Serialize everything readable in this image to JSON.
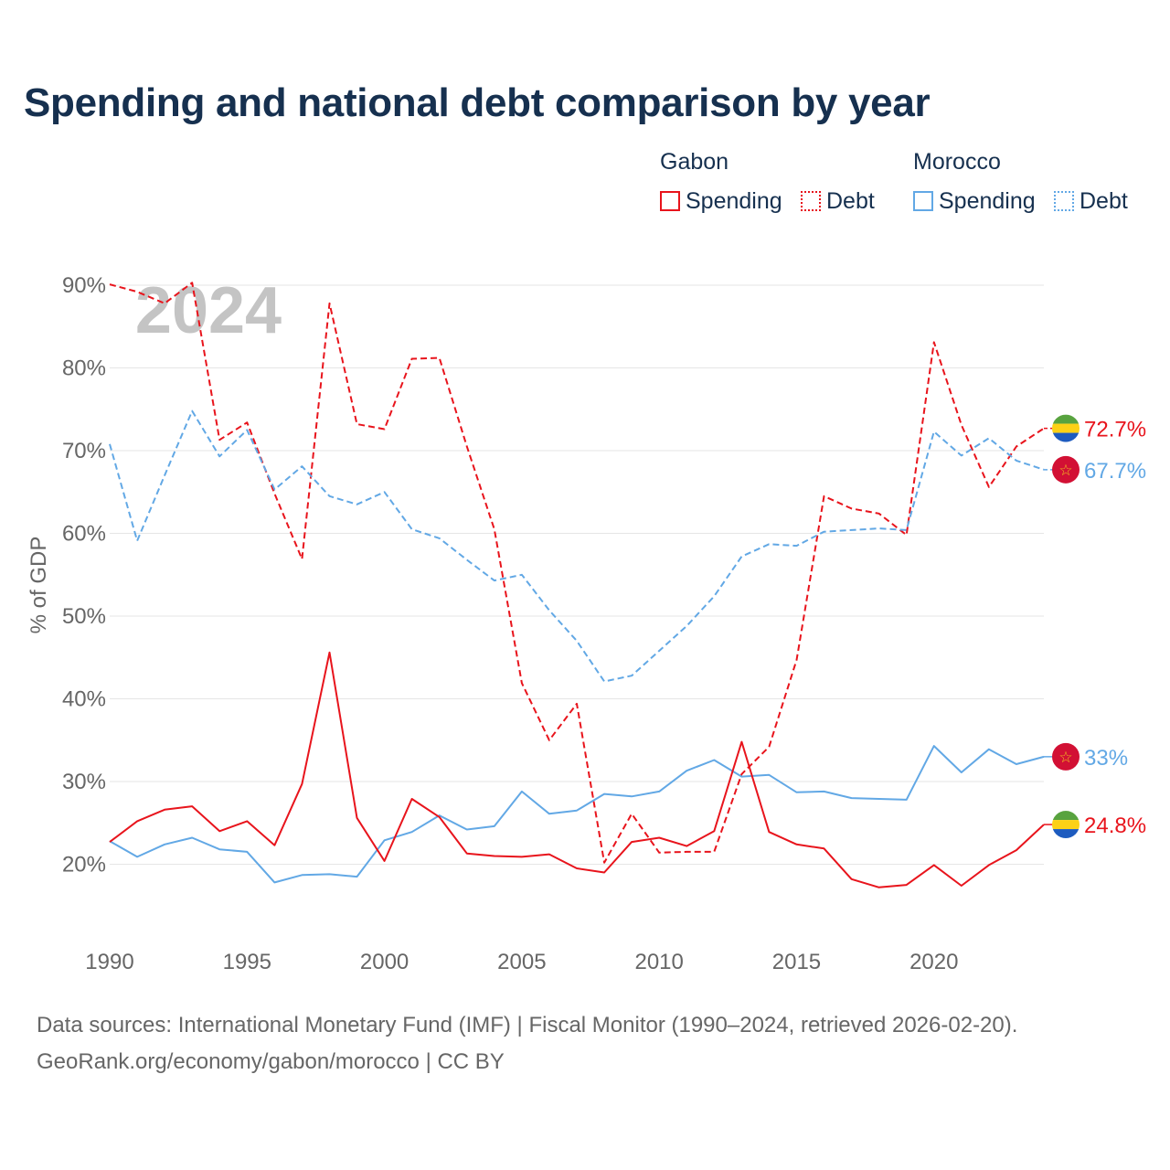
{
  "title": "Spending and national debt comparison by year",
  "legend": {
    "groups": [
      {
        "country": "Gabon",
        "spending_label": "Spending",
        "debt_label": "Debt",
        "color": "#e8141c"
      },
      {
        "country": "Morocco",
        "spending_label": "Spending",
        "debt_label": "Debt",
        "color": "#62a8e5"
      }
    ]
  },
  "footer": {
    "sources": "Data sources: International Monetary Fund (IMF) | Fiscal Monitor (1990–2024, retrieved 2026-02-20).",
    "credit": "GeoRank.org/economy/gabon/morocco | CC BY"
  },
  "chart_data": {
    "type": "line",
    "title": "Spending and national debt comparison by year",
    "ylabel": "% of GDP",
    "xlabel": "",
    "year_watermark": "2024",
    "xlim": [
      1990,
      2024
    ],
    "ylim": [
      10,
      90
    ],
    "y_ticks": [
      20,
      30,
      40,
      50,
      60,
      70,
      80,
      90
    ],
    "y_tick_labels": [
      "20%",
      "30%",
      "40%",
      "50%",
      "60%",
      "70%",
      "80%",
      "90%"
    ],
    "x_ticks": [
      1990,
      1995,
      2000,
      2005,
      2010,
      2015,
      2020
    ],
    "x_tick_labels": [
      "1990",
      "1995",
      "2000",
      "2005",
      "2010",
      "2015",
      "2020"
    ],
    "grid": true,
    "x": [
      1990,
      1991,
      1992,
      1993,
      1994,
      1995,
      1996,
      1997,
      1998,
      1999,
      2000,
      2001,
      2002,
      2003,
      2004,
      2005,
      2006,
      2007,
      2008,
      2009,
      2010,
      2011,
      2012,
      2013,
      2014,
      2015,
      2016,
      2017,
      2018,
      2019,
      2020,
      2021,
      2022,
      2023,
      2024
    ],
    "series": [
      {
        "name": "Gabon Debt",
        "country": "Gabon",
        "flag": "gabon",
        "style": "dashed",
        "color": "#e8141c",
        "end_label": "72.7%",
        "values": [
          90.1,
          89.2,
          87.8,
          90.3,
          71.3,
          73.4,
          64.8,
          56.9,
          87.8,
          73.2,
          72.6,
          81.1,
          81.2,
          70.5,
          60.5,
          41.9,
          35.0,
          39.4,
          20.2,
          26.1,
          21.4,
          21.5,
          21.5,
          30.9,
          34.2,
          44.7,
          64.5,
          63.0,
          62.4,
          59.8,
          83.1,
          73.1,
          65.6,
          70.5,
          72.7
        ]
      },
      {
        "name": "Morocco Debt",
        "country": "Morocco",
        "flag": "morocco",
        "style": "dashed",
        "color": "#62a8e5",
        "end_label": "67.7%",
        "values": [
          70.8,
          59.1,
          67.0,
          74.8,
          69.3,
          72.5,
          65.3,
          68.1,
          64.5,
          63.5,
          65.0,
          60.5,
          59.4,
          56.8,
          54.3,
          55.0,
          50.7,
          47.0,
          42.1,
          42.8,
          45.8,
          48.8,
          52.4,
          57.2,
          58.7,
          58.5,
          60.2,
          60.4,
          60.6,
          60.4,
          72.3,
          69.4,
          71.5,
          68.8,
          67.7
        ]
      },
      {
        "name": "Morocco Spending",
        "country": "Morocco",
        "flag": "morocco",
        "style": "solid",
        "color": "#62a8e5",
        "end_label": "33%",
        "values": [
          22.8,
          20.9,
          22.4,
          23.2,
          21.8,
          21.5,
          17.8,
          18.7,
          18.8,
          18.5,
          22.9,
          23.9,
          25.9,
          24.2,
          24.6,
          28.8,
          26.1,
          26.5,
          28.5,
          28.2,
          28.8,
          31.3,
          32.6,
          30.6,
          30.8,
          28.7,
          28.8,
          28.0,
          27.9,
          27.8,
          34.3,
          31.1,
          33.9,
          32.1,
          33.0
        ]
      },
      {
        "name": "Gabon Spending",
        "country": "Gabon",
        "flag": "gabon",
        "style": "solid",
        "color": "#e8141c",
        "end_label": "24.8%",
        "values": [
          22.7,
          25.2,
          26.6,
          27.0,
          24.0,
          25.2,
          22.3,
          29.7,
          45.6,
          25.6,
          20.4,
          27.9,
          25.7,
          21.3,
          21.0,
          20.9,
          21.2,
          19.5,
          19.0,
          22.7,
          23.2,
          22.2,
          24.0,
          34.8,
          23.9,
          22.4,
          21.9,
          18.2,
          17.2,
          17.5,
          19.9,
          17.4,
          19.9,
          21.7,
          24.8
        ]
      }
    ]
  }
}
